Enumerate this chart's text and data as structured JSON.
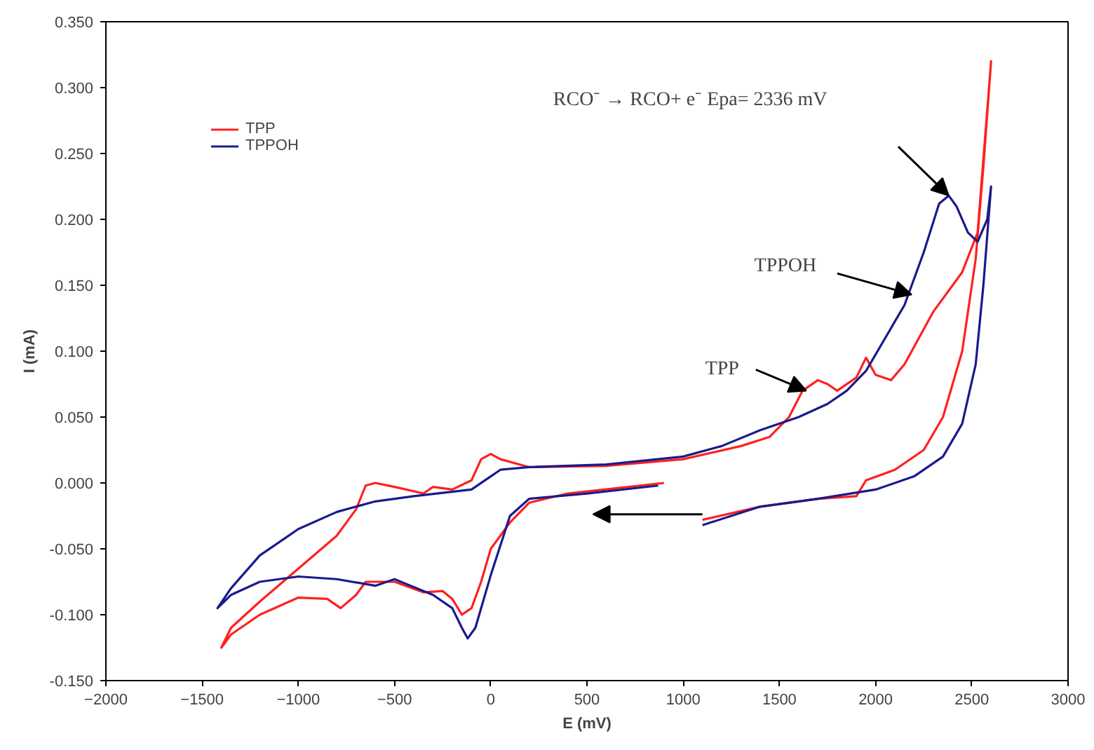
{
  "chart_data": {
    "type": "line",
    "xlabel": "E (mV)",
    "ylabel": "I (mA)",
    "xlim": [
      -2000,
      3000
    ],
    "xticks": [
      -2000,
      -1500,
      -1000,
      -500,
      0,
      500,
      1000,
      1500,
      2000,
      2500,
      3000
    ],
    "ylim": [
      -0.15,
      0.35
    ],
    "yticks": [
      {
        "value": -0.15,
        "label": "-0.150"
      },
      {
        "value": -0.1,
        "label": "-0.100"
      },
      {
        "value": -0.05,
        "label": "-0.050"
      },
      {
        "value": 0,
        "label": "0.000"
      },
      {
        "value": 0.05,
        "label": "0.050"
      },
      {
        "value": 0.1,
        "label": "0.100"
      },
      {
        "value": 0.15,
        "label": "0.150"
      },
      {
        "value": 0.2,
        "label": "0.200"
      },
      {
        "value": 0.25,
        "label": "0.250"
      },
      {
        "value": 0.3,
        "label": "0.300"
      },
      {
        "value": 0.35,
        "label": "0.350"
      }
    ],
    "grid": false,
    "legend": "top left",
    "marker": "none",
    "line_style": "solid",
    "series": [
      {
        "name": "TPP",
        "color": "#ff2020",
        "x": [
          1100,
          1400,
          1700,
          1900,
          1950,
          2100,
          2250,
          2350,
          2450,
          2520,
          2560,
          2600,
          2530,
          2450,
          2300,
          2150,
          2080,
          2000,
          1950,
          1900,
          1800,
          1750,
          1700,
          1620,
          1550,
          1450,
          1300,
          1000,
          600,
          200,
          50,
          0,
          -50,
          -100,
          -200,
          -300,
          -350,
          -500,
          -600,
          -650,
          -700,
          -800,
          -1000,
          -1200,
          -1350,
          -1400,
          -1350,
          -1200,
          -1000,
          -850,
          -780,
          -700,
          -650,
          -500,
          -350,
          -250,
          -200,
          -150,
          -100,
          -50,
          0,
          100,
          200,
          400,
          900
        ],
        "values": [
          -0.028,
          -0.018,
          -0.012,
          -0.01,
          0.002,
          0.01,
          0.025,
          0.05,
          0.1,
          0.17,
          0.24,
          0.32,
          0.19,
          0.16,
          0.13,
          0.09,
          0.078,
          0.082,
          0.095,
          0.08,
          0.07,
          0.075,
          0.078,
          0.07,
          0.05,
          0.035,
          0.028,
          0.018,
          0.013,
          0.012,
          0.018,
          0.022,
          0.018,
          0.002,
          -0.005,
          -0.003,
          -0.008,
          -0.003,
          0.0,
          -0.002,
          -0.02,
          -0.04,
          -0.065,
          -0.09,
          -0.11,
          -0.125,
          -0.115,
          -0.1,
          -0.087,
          -0.088,
          -0.095,
          -0.085,
          -0.075,
          -0.075,
          -0.083,
          -0.082,
          -0.088,
          -0.1,
          -0.095,
          -0.075,
          -0.05,
          -0.03,
          -0.015,
          -0.008,
          0.0
        ]
      },
      {
        "name": "TPPOH",
        "color": "#1a1a8c",
        "x": [
          1100,
          1400,
          1700,
          2000,
          2200,
          2350,
          2450,
          2520,
          2560,
          2600,
          2580,
          2530,
          2480,
          2420,
          2380,
          2330,
          2250,
          2150,
          2050,
          1950,
          1850,
          1750,
          1600,
          1400,
          1200,
          1000,
          600,
          200,
          50,
          0,
          -100,
          -400,
          -600,
          -800,
          -1000,
          -1200,
          -1350,
          -1420,
          -1350,
          -1200,
          -1000,
          -800,
          -600,
          -500,
          -450,
          -300,
          -200,
          -150,
          -120,
          -80,
          0,
          100,
          200,
          500,
          870
        ],
        "values": [
          -0.032,
          -0.018,
          -0.012,
          -0.005,
          0.005,
          0.02,
          0.045,
          0.09,
          0.15,
          0.225,
          0.2,
          0.183,
          0.19,
          0.21,
          0.218,
          0.212,
          0.175,
          0.135,
          0.11,
          0.085,
          0.07,
          0.06,
          0.05,
          0.04,
          0.028,
          0.02,
          0.014,
          0.012,
          0.01,
          0.005,
          -0.005,
          -0.01,
          -0.014,
          -0.022,
          -0.035,
          -0.055,
          -0.08,
          -0.095,
          -0.085,
          -0.075,
          -0.071,
          -0.073,
          -0.078,
          -0.073,
          -0.076,
          -0.085,
          -0.095,
          -0.11,
          -0.118,
          -0.11,
          -0.07,
          -0.025,
          -0.012,
          -0.008,
          -0.002
        ]
      }
    ],
    "annotations": [
      "RCO⁻ → RCO+ e⁻     Epa=  2336 mV",
      {
        "text": "TPPOH",
        "x": 2187,
        "y": 0.143
      },
      {
        "text": "TPP",
        "x": 1640,
        "y": 0.07
      }
    ]
  }
}
